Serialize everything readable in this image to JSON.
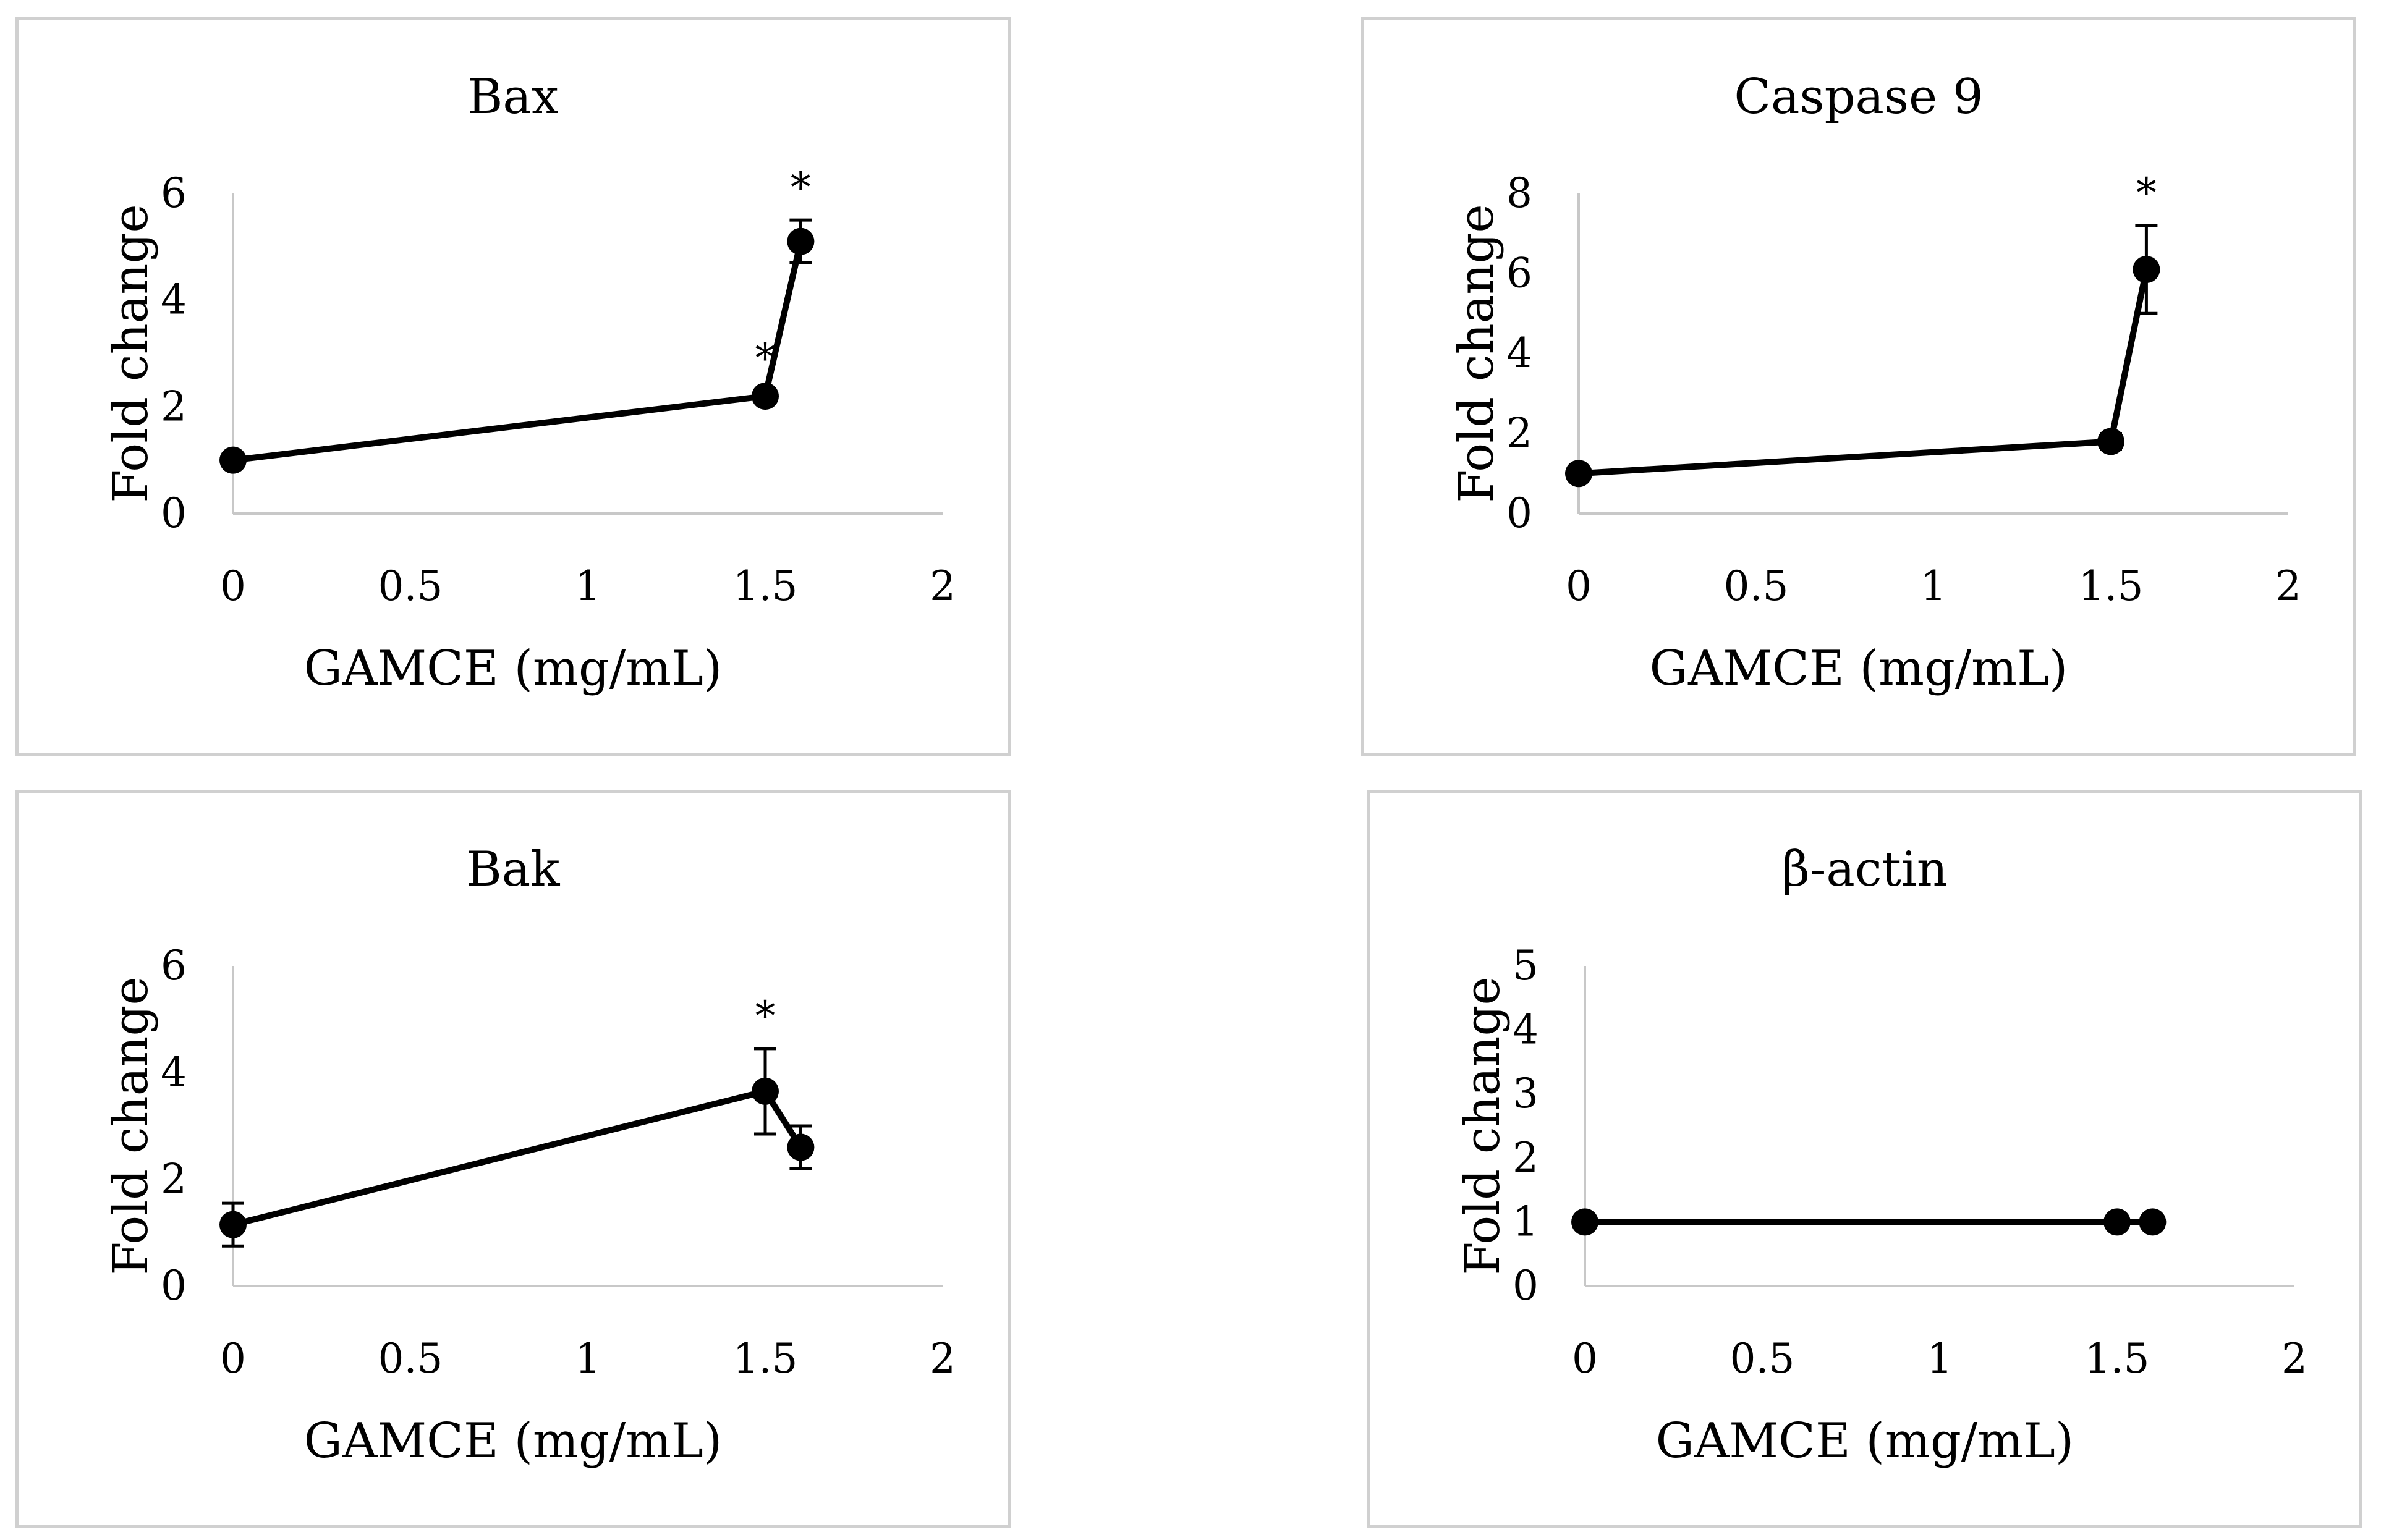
{
  "figure": {
    "colors": {
      "line": "#000000",
      "axis": "#c8c8c8",
      "border": "#d0d0d0",
      "background": "#ffffff"
    }
  },
  "chart_data": [
    {
      "type": "line",
      "title": "Bax",
      "xlabel": "GAMCE (mg/mL)",
      "ylabel": "Fold change",
      "xlim": [
        0,
        2
      ],
      "ylim": [
        0,
        6
      ],
      "xticks": [
        "0",
        "0.5",
        "1",
        "1.5",
        "2"
      ],
      "yticks": [
        "0",
        "2",
        "4",
        "6"
      ],
      "x": [
        0,
        1.5,
        1.6
      ],
      "y": [
        1.0,
        2.2,
        5.1
      ],
      "error": [
        0.05,
        0.1,
        0.4
      ],
      "significance": [
        "",
        "*",
        "*"
      ]
    },
    {
      "type": "line",
      "title": "Caspase 9",
      "xlabel": "GAMCE (mg/mL)",
      "ylabel": "Fold change",
      "xlim": [
        0,
        2
      ],
      "ylim": [
        0,
        8
      ],
      "xticks": [
        "0",
        "0.5",
        "1",
        "1.5",
        "2"
      ],
      "yticks": [
        "0",
        "2",
        "4",
        "6",
        "8"
      ],
      "x": [
        0,
        1.5,
        1.6
      ],
      "y": [
        1.0,
        1.8,
        6.1
      ],
      "error": [
        0.05,
        0.2,
        1.1
      ],
      "significance": [
        "",
        "",
        "*"
      ]
    },
    {
      "type": "line",
      "title": "Bak",
      "xlabel": "GAMCE (mg/mL)",
      "ylabel": "Fold change",
      "xlim": [
        0,
        2
      ],
      "ylim": [
        0,
        6
      ],
      "xticks": [
        "0",
        "0.5",
        "1",
        "1.5",
        "2"
      ],
      "yticks": [
        "0",
        "2",
        "4",
        "6"
      ],
      "x": [
        0,
        1.5,
        1.6
      ],
      "y": [
        1.15,
        3.65,
        2.6
      ],
      "error": [
        0.4,
        0.8,
        0.4
      ],
      "significance": [
        "",
        "*",
        ""
      ]
    },
    {
      "type": "line",
      "title": "β-actin",
      "xlabel": "GAMCE (mg/mL)",
      "ylabel": "Fold change",
      "xlim": [
        0,
        2
      ],
      "ylim": [
        0,
        5
      ],
      "xticks": [
        "0",
        "0.5",
        "1",
        "1.5",
        "2"
      ],
      "yticks": [
        "0",
        "1",
        "2",
        "3",
        "4",
        "5"
      ],
      "x": [
        0,
        1.5,
        1.6
      ],
      "y": [
        1.0,
        1.0,
        1.0
      ],
      "error": [
        0,
        0,
        0
      ],
      "significance": [
        "",
        "",
        ""
      ]
    }
  ]
}
